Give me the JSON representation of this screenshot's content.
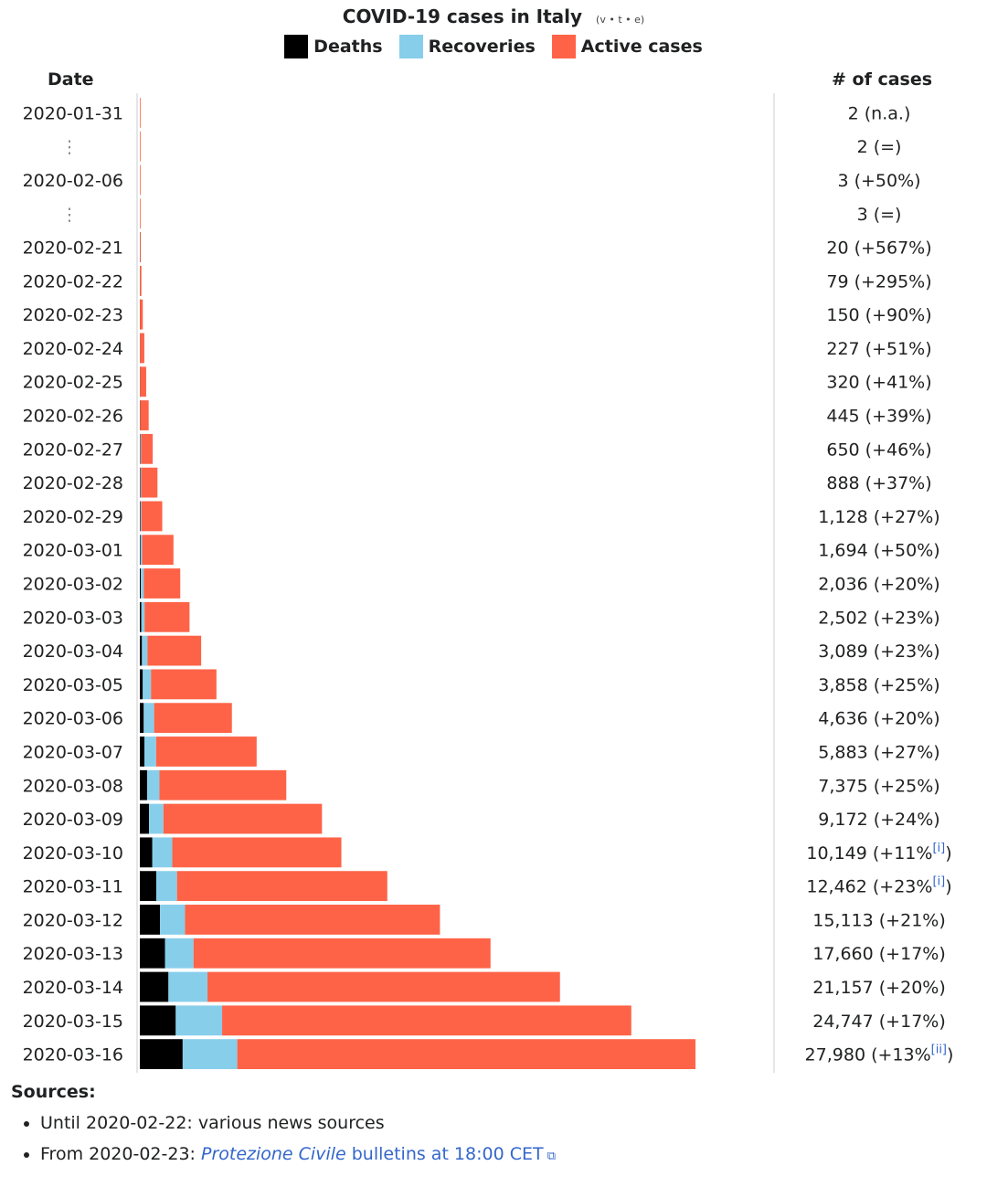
{
  "title": "COVID-19 cases in Italy",
  "nav": {
    "view": "v",
    "talk": "t",
    "edit": "e"
  },
  "legend": [
    {
      "label": "Deaths",
      "color": "#000000"
    },
    {
      "label": "Recoveries",
      "color": "#87ceeb"
    },
    {
      "label": "Active cases",
      "color": "#ff6347"
    }
  ],
  "date_header": "Date",
  "cases_header": "# of cases",
  "chart_data": {
    "type": "bar",
    "orientation": "horizontal-stacked",
    "series_order": [
      "Deaths",
      "Recoveries",
      "Active cases"
    ],
    "rows": [
      {
        "date": "2020-01-31",
        "deaths": 0,
        "recoveries": 0,
        "active": 2,
        "total_label": "2",
        "change": "(n.a.)"
      },
      {
        "date": "⋮",
        "deaths": 0,
        "recoveries": 0,
        "active": 2,
        "total_label": "2",
        "change": "(=)"
      },
      {
        "date": "2020-02-06",
        "deaths": 0,
        "recoveries": 0,
        "active": 3,
        "total_label": "3",
        "change": "(+50%)"
      },
      {
        "date": "⋮",
        "deaths": 0,
        "recoveries": 0,
        "active": 3,
        "total_label": "3",
        "change": "(=)"
      },
      {
        "date": "2020-02-21",
        "deaths": 1,
        "recoveries": 0,
        "active": 19,
        "total_label": "20",
        "change": "(+567%)"
      },
      {
        "date": "2020-02-22",
        "deaths": 2,
        "recoveries": 0,
        "active": 77,
        "total_label": "79",
        "change": "(+295%)"
      },
      {
        "date": "2020-02-23",
        "deaths": 3,
        "recoveries": 0,
        "active": 147,
        "total_label": "150",
        "change": "(+90%)"
      },
      {
        "date": "2020-02-24",
        "deaths": 7,
        "recoveries": 1,
        "active": 219,
        "total_label": "227",
        "change": "(+51%)"
      },
      {
        "date": "2020-02-25",
        "deaths": 10,
        "recoveries": 1,
        "active": 309,
        "total_label": "320",
        "change": "(+41%)"
      },
      {
        "date": "2020-02-26",
        "deaths": 12,
        "recoveries": 3,
        "active": 430,
        "total_label": "445",
        "change": "(+39%)"
      },
      {
        "date": "2020-02-27",
        "deaths": 17,
        "recoveries": 45,
        "active": 588,
        "total_label": "650",
        "change": "(+46%)"
      },
      {
        "date": "2020-02-28",
        "deaths": 21,
        "recoveries": 46,
        "active": 821,
        "total_label": "888",
        "change": "(+37%)"
      },
      {
        "date": "2020-02-29",
        "deaths": 29,
        "recoveries": 50,
        "active": 1049,
        "total_label": "1,128",
        "change": "(+27%)"
      },
      {
        "date": "2020-03-01",
        "deaths": 34,
        "recoveries": 83,
        "active": 1577,
        "total_label": "1,694",
        "change": "(+50%)"
      },
      {
        "date": "2020-03-02",
        "deaths": 52,
        "recoveries": 149,
        "active": 1835,
        "total_label": "2,036",
        "change": "(+20%)"
      },
      {
        "date": "2020-03-03",
        "deaths": 79,
        "recoveries": 160,
        "active": 2263,
        "total_label": "2,502",
        "change": "(+23%)"
      },
      {
        "date": "2020-03-04",
        "deaths": 107,
        "recoveries": 276,
        "active": 2706,
        "total_label": "3,089",
        "change": "(+23%)"
      },
      {
        "date": "2020-03-05",
        "deaths": 148,
        "recoveries": 414,
        "active": 3296,
        "total_label": "3,858",
        "change": "(+25%)"
      },
      {
        "date": "2020-03-06",
        "deaths": 197,
        "recoveries": 523,
        "active": 3916,
        "total_label": "4,636",
        "change": "(+20%)"
      },
      {
        "date": "2020-03-07",
        "deaths": 233,
        "recoveries": 589,
        "active": 5061,
        "total_label": "5,883",
        "change": "(+27%)"
      },
      {
        "date": "2020-03-08",
        "deaths": 366,
        "recoveries": 622,
        "active": 6387,
        "total_label": "7,375",
        "change": "(+25%)"
      },
      {
        "date": "2020-03-09",
        "deaths": 463,
        "recoveries": 724,
        "active": 7985,
        "total_label": "9,172",
        "change": "(+24%)"
      },
      {
        "date": "2020-03-10",
        "deaths": 631,
        "recoveries": 1004,
        "active": 8514,
        "total_label": "10,149",
        "change": "(+11%",
        "footnote": "[i]",
        "change_close": ")"
      },
      {
        "date": "2020-03-11",
        "deaths": 827,
        "recoveries": 1045,
        "active": 10590,
        "total_label": "12,462",
        "change": "(+23%",
        "footnote": "[i]",
        "change_close": ")"
      },
      {
        "date": "2020-03-12",
        "deaths": 1016,
        "recoveries": 1258,
        "active": 12839,
        "total_label": "15,113",
        "change": "(+21%)"
      },
      {
        "date": "2020-03-13",
        "deaths": 1266,
        "recoveries": 1439,
        "active": 14955,
        "total_label": "17,660",
        "change": "(+17%)"
      },
      {
        "date": "2020-03-14",
        "deaths": 1441,
        "recoveries": 1966,
        "active": 17750,
        "total_label": "21,157",
        "change": "(+20%)"
      },
      {
        "date": "2020-03-15",
        "deaths": 1809,
        "recoveries": 2335,
        "active": 20603,
        "total_label": "24,747",
        "change": "(+17%)"
      },
      {
        "date": "2020-03-16",
        "deaths": 2158,
        "recoveries": 2749,
        "active": 23073,
        "total_label": "27,980",
        "change": "(+13%",
        "footnote": "[ii]",
        "change_close": ")"
      }
    ]
  },
  "sources": {
    "title": "Sources:",
    "item1": "Until 2020-02-22: various news sources",
    "item2_prefix": "From 2020-02-23: ",
    "item2_link": "Protezione Civile",
    "item2_suffix": " bulletins at 18:00 CET",
    "ext_icon": "external-link-icon"
  }
}
